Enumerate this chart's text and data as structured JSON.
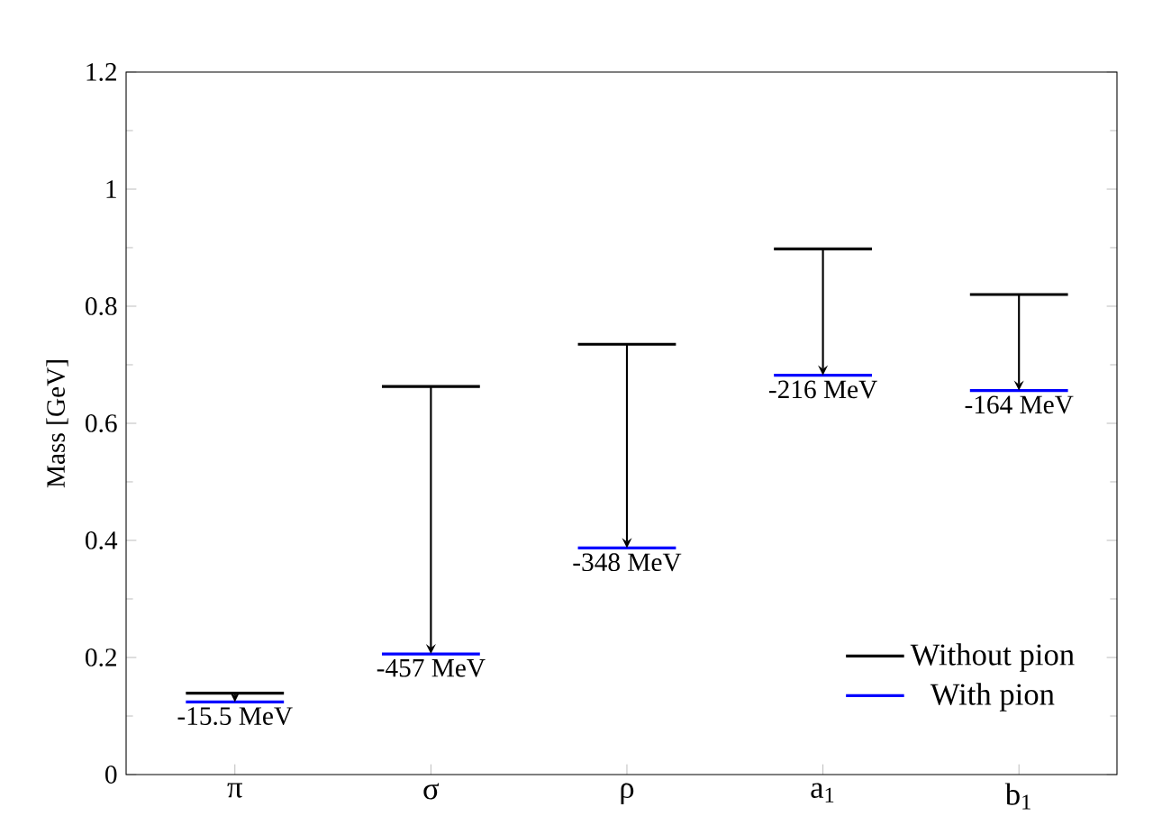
{
  "chart_data": {
    "type": "line",
    "ylabel": "Mass [GeV]",
    "categories": [
      null,
      "π",
      null,
      null,
      null,
      "σ",
      null,
      null,
      null,
      "ρ",
      null,
      null,
      null,
      "a$_{1}$",
      null,
      null,
      null,
      "b$_{1}$",
      null
    ],
    "series": [
      {
        "name": "Without pion",
        "color": "#000000",
        "values": [
          0.139,
          0.139,
          0.139,
          null,
          0.663,
          0.663,
          0.663,
          null,
          0.735,
          0.735,
          0.735,
          null,
          0.898,
          0.898,
          0.898,
          null,
          0.82,
          0.82,
          0.82
        ]
      },
      {
        "name": "With pion",
        "color": "#0000ff",
        "values": [
          0.124,
          0.124,
          0.124,
          null,
          0.206,
          0.206,
          0.206,
          null,
          0.387,
          0.387,
          0.387,
          null,
          0.682,
          0.682,
          0.682,
          null,
          0.656,
          0.656,
          0.656
        ]
      }
    ],
    "annotations": [
      {
        "text": "-15.5 MeV",
        "x": "π",
        "y": 0.124
      },
      {
        "text": "-457 MeV",
        "x": "σ",
        "y": 0.206
      },
      {
        "text": "-348 MeV",
        "x": "ρ",
        "y": 0.387
      },
      {
        "text": "-216 MeV",
        "x": "a$_{1}$",
        "y": 0.682
      },
      {
        "text": "-164 MeV",
        "x": "b$_{1}$",
        "y": 0.656
      }
    ],
    "ylim": [
      0,
      1.2
    ],
    "yticks": [
      0,
      0.2,
      0.4,
      0.6,
      0.8,
      1,
      1.2
    ],
    "marker": "none",
    "line_style": "solid",
    "grid": false,
    "legend": "bottom right"
  }
}
